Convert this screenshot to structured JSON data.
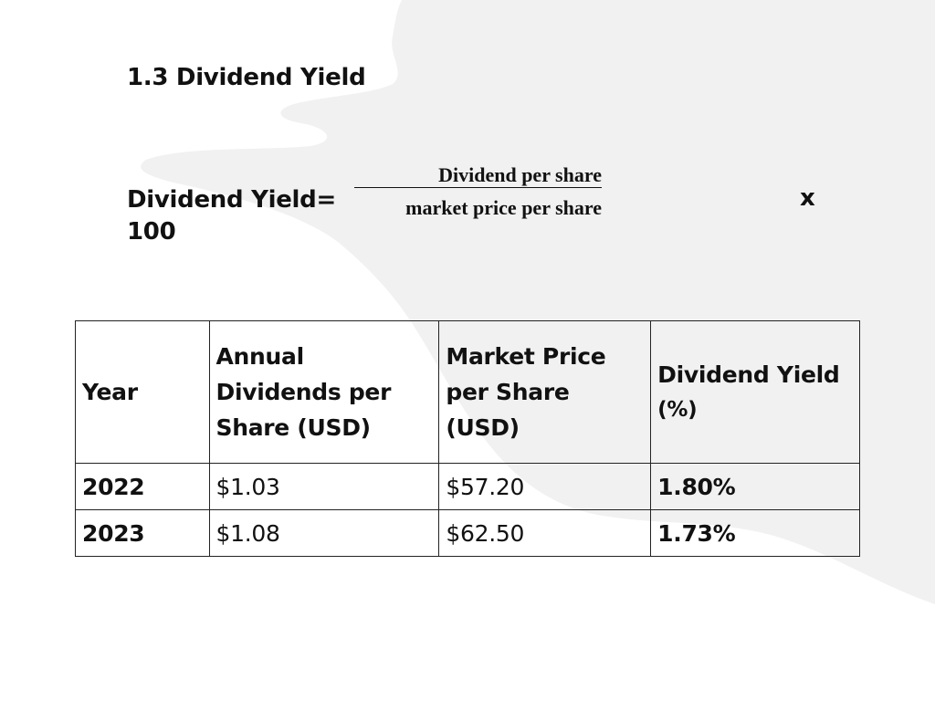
{
  "section": {
    "title": "1.3 Dividend Yield"
  },
  "formula": {
    "lhs_label": "Dividend Yield=",
    "lhs_line2": "100",
    "numerator": "Dividend per share",
    "denominator": "market price per share",
    "operator": "x"
  },
  "table": {
    "headers": [
      "Year",
      "Annual Dividends per Share (USD)",
      "Market Price per Share (USD)",
      "Dividend Yield"
    ],
    "header_dy_unit": "(%)",
    "rows": [
      {
        "year": "2022",
        "annual_dividend": "$1.03",
        "market_price": "$57.20",
        "dividend_yield": "1.80%"
      },
      {
        "year": "2023",
        "annual_dividend": "$1.08",
        "market_price": "$62.50",
        "dividend_yield": "1.73%"
      }
    ]
  },
  "colors": {
    "background": "#ffffff",
    "brush_stroke": "#f0f0f0",
    "text": "#111111"
  }
}
